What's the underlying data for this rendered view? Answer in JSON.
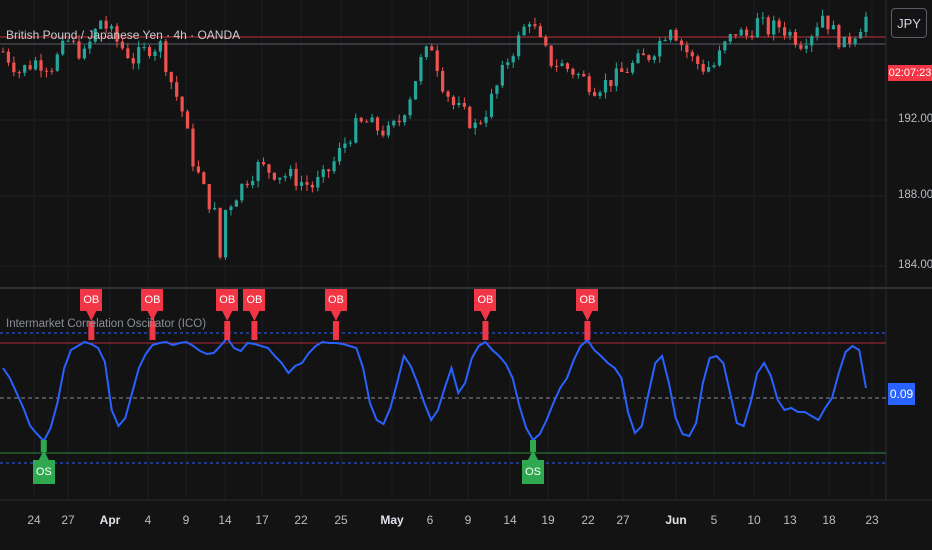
{
  "header": {
    "symbol_title": "British Pound / Japanese Yen · 4h · OANDA",
    "currency_button": "JPY"
  },
  "price_axis": {
    "labels": [
      "192.000",
      "188.000",
      "184.000"
    ],
    "last_price_tag": "02:07:23"
  },
  "indicator": {
    "title": "Intermarket Correlation Oscillator (ICO)",
    "current_value": "0.09",
    "ob_label": "OB",
    "os_label": "OS"
  },
  "time_axis": {
    "labels": [
      {
        "text": "24",
        "bold": false
      },
      {
        "text": "27",
        "bold": false
      },
      {
        "text": "Apr",
        "bold": true
      },
      {
        "text": "4",
        "bold": false
      },
      {
        "text": "9",
        "bold": false
      },
      {
        "text": "14",
        "bold": false
      },
      {
        "text": "17",
        "bold": false
      },
      {
        "text": "22",
        "bold": false
      },
      {
        "text": "25",
        "bold": false
      },
      {
        "text": "May",
        "bold": true
      },
      {
        "text": "6",
        "bold": false
      },
      {
        "text": "9",
        "bold": false
      },
      {
        "text": "14",
        "bold": false
      },
      {
        "text": "19",
        "bold": false
      },
      {
        "text": "22",
        "bold": false
      },
      {
        "text": "27",
        "bold": false
      },
      {
        "text": "Jun",
        "bold": true
      },
      {
        "text": "5",
        "bold": false
      },
      {
        "text": "10",
        "bold": false
      },
      {
        "text": "13",
        "bold": false
      },
      {
        "text": "18",
        "bold": false
      },
      {
        "text": "23",
        "bold": false
      }
    ]
  },
  "colors": {
    "up": "#26a69a",
    "down": "#ef5350",
    "oscillator": "#2962ff",
    "ob_signal": "#f23645",
    "os_signal": "#2fa84f"
  },
  "chart_data": [
    {
      "type": "candlestick",
      "ylim": [
        183.2,
        197.6
      ],
      "close_path": [
        {
          "x": 0,
          "y": 195.0
        },
        {
          "x": 3,
          "y": 194.0
        },
        {
          "x": 6,
          "y": 194.5
        },
        {
          "x": 9,
          "y": 194.3
        },
        {
          "x": 12,
          "y": 195.5
        },
        {
          "x": 15,
          "y": 194.8
        },
        {
          "x": 18,
          "y": 196.6
        },
        {
          "x": 21,
          "y": 195.5
        },
        {
          "x": 24,
          "y": 194.6
        },
        {
          "x": 27,
          "y": 195.2
        },
        {
          "x": 29,
          "y": 195.3
        },
        {
          "x": 31,
          "y": 193.5
        },
        {
          "x": 33,
          "y": 192.0
        },
        {
          "x": 35,
          "y": 189.5
        },
        {
          "x": 37,
          "y": 188.0
        },
        {
          "x": 39,
          "y": 186.8
        },
        {
          "x": 40,
          "y": 184.6
        },
        {
          "x": 41,
          "y": 187.0
        },
        {
          "x": 43,
          "y": 187.8
        },
        {
          "x": 45,
          "y": 188.6
        },
        {
          "x": 47,
          "y": 189.2
        },
        {
          "x": 49,
          "y": 189.0
        },
        {
          "x": 51,
          "y": 188.8
        },
        {
          "x": 53,
          "y": 188.7
        },
        {
          "x": 55,
          "y": 188.4
        },
        {
          "x": 57,
          "y": 188.2
        },
        {
          "x": 59,
          "y": 188.6
        },
        {
          "x": 61,
          "y": 189.4
        },
        {
          "x": 63,
          "y": 190.4
        },
        {
          "x": 65,
          "y": 191.2
        },
        {
          "x": 67,
          "y": 191.4
        },
        {
          "x": 69,
          "y": 191.1
        },
        {
          "x": 71,
          "y": 190.9
        },
        {
          "x": 73,
          "y": 191.5
        },
        {
          "x": 75,
          "y": 192.8
        },
        {
          "x": 77,
          "y": 194.5
        },
        {
          "x": 79,
          "y": 195.3
        },
        {
          "x": 81,
          "y": 193.4
        },
        {
          "x": 83,
          "y": 192.3
        },
        {
          "x": 85,
          "y": 191.8
        },
        {
          "x": 87,
          "y": 191.2
        },
        {
          "x": 89,
          "y": 192.0
        },
        {
          "x": 91,
          "y": 193.2
        },
        {
          "x": 93,
          "y": 194.6
        },
        {
          "x": 95,
          "y": 195.6
        },
        {
          "x": 97,
          "y": 196.7
        },
        {
          "x": 99,
          "y": 195.4
        },
        {
          "x": 101,
          "y": 194.5
        },
        {
          "x": 103,
          "y": 194.3
        },
        {
          "x": 105,
          "y": 194.0
        },
        {
          "x": 107,
          "y": 193.6
        },
        {
          "x": 109,
          "y": 193.2
        },
        {
          "x": 111,
          "y": 193.4
        },
        {
          "x": 113,
          "y": 193.7
        },
        {
          "x": 115,
          "y": 194.1
        },
        {
          "x": 117,
          "y": 194.5
        },
        {
          "x": 119,
          "y": 194.8
        },
        {
          "x": 121,
          "y": 195.5
        },
        {
          "x": 123,
          "y": 196.4
        },
        {
          "x": 125,
          "y": 195.4
        },
        {
          "x": 127,
          "y": 194.6
        },
        {
          "x": 129,
          "y": 194.2
        },
        {
          "x": 131,
          "y": 194.3
        },
        {
          "x": 133,
          "y": 195.3
        },
        {
          "x": 135,
          "y": 196.0
        },
        {
          "x": 137,
          "y": 195.8
        },
        {
          "x": 139,
          "y": 196.5
        },
        {
          "x": 141,
          "y": 196.1
        },
        {
          "x": 143,
          "y": 196.3
        },
        {
          "x": 145,
          "y": 195.9
        },
        {
          "x": 147,
          "y": 195.5
        },
        {
          "x": 149,
          "y": 196.0
        },
        {
          "x": 151,
          "y": 196.9
        },
        {
          "x": 153,
          "y": 196.0
        },
        {
          "x": 155,
          "y": 195.3
        },
        {
          "x": 157,
          "y": 196.0
        },
        {
          "x": 159,
          "y": 196.7
        }
      ]
    },
    {
      "type": "line",
      "series": [
        {
          "name": "ICO",
          "points": [
            {
              "x": 0,
              "y": 0.3
            },
            {
              "x": 1,
              "y": 0.2
            },
            {
              "x": 2,
              "y": 0.05
            },
            {
              "x": 3,
              "y": -0.1
            },
            {
              "x": 4,
              "y": -0.28
            },
            {
              "x": 5,
              "y": -0.36
            },
            {
              "x": 6,
              "y": -0.43
            },
            {
              "x": 7,
              "y": -0.3
            },
            {
              "x": 8,
              "y": -0.05
            },
            {
              "x": 9,
              "y": 0.3
            },
            {
              "x": 10,
              "y": 0.48
            },
            {
              "x": 11,
              "y": 0.52
            },
            {
              "x": 12,
              "y": 0.56
            },
            {
              "x": 13,
              "y": 0.54
            },
            {
              "x": 14,
              "y": 0.5
            },
            {
              "x": 15,
              "y": 0.36
            },
            {
              "x": 16,
              "y": -0.12
            },
            {
              "x": 17,
              "y": -0.28
            },
            {
              "x": 18,
              "y": -0.2
            },
            {
              "x": 19,
              "y": 0.05
            },
            {
              "x": 20,
              "y": 0.3
            },
            {
              "x": 21,
              "y": 0.44
            },
            {
              "x": 22,
              "y": 0.53
            },
            {
              "x": 23,
              "y": 0.55
            },
            {
              "x": 24,
              "y": 0.56
            },
            {
              "x": 25,
              "y": 0.53
            },
            {
              "x": 26,
              "y": 0.55
            },
            {
              "x": 27,
              "y": 0.56
            },
            {
              "x": 28,
              "y": 0.52
            },
            {
              "x": 29,
              "y": 0.47
            },
            {
              "x": 30,
              "y": 0.44
            },
            {
              "x": 31,
              "y": 0.45
            },
            {
              "x": 32,
              "y": 0.52
            },
            {
              "x": 33,
              "y": 0.6
            },
            {
              "x": 34,
              "y": 0.5
            },
            {
              "x": 35,
              "y": 0.47
            },
            {
              "x": 36,
              "y": 0.55
            },
            {
              "x": 37,
              "y": 0.54
            },
            {
              "x": 38,
              "y": 0.52
            },
            {
              "x": 39,
              "y": 0.5
            },
            {
              "x": 40,
              "y": 0.42
            },
            {
              "x": 41,
              "y": 0.35
            },
            {
              "x": 42,
              "y": 0.25
            },
            {
              "x": 43,
              "y": 0.32
            },
            {
              "x": 44,
              "y": 0.35
            },
            {
              "x": 45,
              "y": 0.45
            },
            {
              "x": 46,
              "y": 0.52
            },
            {
              "x": 47,
              "y": 0.56
            },
            {
              "x": 48,
              "y": 0.55
            },
            {
              "x": 49,
              "y": 0.55
            },
            {
              "x": 50,
              "y": 0.54
            },
            {
              "x": 51,
              "y": 0.52
            },
            {
              "x": 52,
              "y": 0.5
            },
            {
              "x": 53,
              "y": 0.3
            },
            {
              "x": 54,
              "y": -0.05
            },
            {
              "x": 55,
              "y": -0.22
            },
            {
              "x": 56,
              "y": -0.26
            },
            {
              "x": 57,
              "y": -0.1
            },
            {
              "x": 58,
              "y": 0.15
            },
            {
              "x": 59,
              "y": 0.42
            },
            {
              "x": 60,
              "y": 0.32
            },
            {
              "x": 61,
              "y": 0.15
            },
            {
              "x": 62,
              "y": -0.05
            },
            {
              "x": 63,
              "y": -0.22
            },
            {
              "x": 64,
              "y": -0.12
            },
            {
              "x": 65,
              "y": 0.1
            },
            {
              "x": 66,
              "y": 0.3
            },
            {
              "x": 67,
              "y": 0.05
            },
            {
              "x": 68,
              "y": 0.15
            },
            {
              "x": 69,
              "y": 0.4
            },
            {
              "x": 70,
              "y": 0.52
            },
            {
              "x": 71,
              "y": 0.56
            },
            {
              "x": 72,
              "y": 0.48
            },
            {
              "x": 73,
              "y": 0.42
            },
            {
              "x": 74,
              "y": 0.34
            },
            {
              "x": 75,
              "y": 0.2
            },
            {
              "x": 76,
              "y": -0.08
            },
            {
              "x": 77,
              "y": -0.3
            },
            {
              "x": 78,
              "y": -0.42
            },
            {
              "x": 79,
              "y": -0.36
            },
            {
              "x": 80,
              "y": -0.22
            },
            {
              "x": 81,
              "y": -0.05
            },
            {
              "x": 82,
              "y": 0.1
            },
            {
              "x": 83,
              "y": 0.2
            },
            {
              "x": 84,
              "y": 0.38
            },
            {
              "x": 85,
              "y": 0.52
            },
            {
              "x": 86,
              "y": 0.58
            },
            {
              "x": 87,
              "y": 0.48
            },
            {
              "x": 88,
              "y": 0.42
            },
            {
              "x": 89,
              "y": 0.35
            },
            {
              "x": 90,
              "y": 0.3
            },
            {
              "x": 91,
              "y": 0.2
            },
            {
              "x": 92,
              "y": -0.15
            },
            {
              "x": 93,
              "y": -0.35
            },
            {
              "x": 94,
              "y": -0.28
            },
            {
              "x": 95,
              "y": 0.05
            },
            {
              "x": 96,
              "y": 0.35
            },
            {
              "x": 97,
              "y": 0.42
            },
            {
              "x": 98,
              "y": 0.15
            },
            {
              "x": 99,
              "y": -0.2
            },
            {
              "x": 100,
              "y": -0.36
            },
            {
              "x": 101,
              "y": -0.38
            },
            {
              "x": 102,
              "y": -0.25
            },
            {
              "x": 103,
              "y": 0.15
            },
            {
              "x": 104,
              "y": 0.4
            },
            {
              "x": 105,
              "y": 0.42
            },
            {
              "x": 106,
              "y": 0.35
            },
            {
              "x": 107,
              "y": 0.05
            },
            {
              "x": 108,
              "y": -0.25
            },
            {
              "x": 109,
              "y": -0.28
            },
            {
              "x": 110,
              "y": -0.05
            },
            {
              "x": 111,
              "y": 0.25
            },
            {
              "x": 112,
              "y": 0.35
            },
            {
              "x": 113,
              "y": 0.22
            },
            {
              "x": 114,
              "y": -0.02
            },
            {
              "x": 115,
              "y": -0.12
            },
            {
              "x": 116,
              "y": -0.1
            },
            {
              "x": 117,
              "y": -0.14
            },
            {
              "x": 118,
              "y": -0.14
            },
            {
              "x": 119,
              "y": -0.18
            },
            {
              "x": 120,
              "y": -0.22
            },
            {
              "x": 121,
              "y": -0.1
            },
            {
              "x": 122,
              "y": 0.0
            },
            {
              "x": 123,
              "y": 0.25
            },
            {
              "x": 124,
              "y": 0.46
            },
            {
              "x": 125,
              "y": 0.52
            },
            {
              "x": 126,
              "y": 0.48
            },
            {
              "x": 127,
              "y": 0.1
            }
          ]
        }
      ],
      "reference_levels": {
        "outer_dotted": [
          0.65,
          -0.65
        ],
        "solid": [
          0.55,
          -0.55
        ],
        "zero": 0
      },
      "ob_signals_at": [
        13,
        22,
        33,
        37,
        49,
        71,
        86
      ],
      "os_signals_at": [
        6,
        78
      ],
      "ylim": [
        -0.9,
        0.9
      ]
    }
  ]
}
